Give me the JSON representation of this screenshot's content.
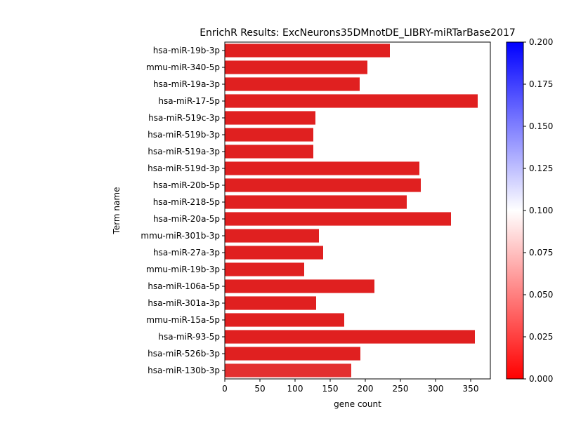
{
  "chart_data": {
    "type": "bar",
    "orientation": "horizontal",
    "title": "EnrichR Results: ExcNeurons35DMnotDE_LIBRY-miRTarBase2017",
    "xlabel": "gene count",
    "ylabel": "Term name",
    "xlim": [
      0,
      378
    ],
    "xticks": [
      0,
      50,
      100,
      150,
      200,
      250,
      300,
      350
    ],
    "categories": [
      "hsa-miR-19b-3p",
      "mmu-miR-340-5p",
      "hsa-miR-19a-3p",
      "hsa-miR-17-5p",
      "hsa-miR-519c-3p",
      "hsa-miR-519b-3p",
      "hsa-miR-519a-3p",
      "hsa-miR-519d-3p",
      "hsa-miR-20b-5p",
      "hsa-miR-218-5p",
      "hsa-miR-20a-5p",
      "mmu-miR-301b-3p",
      "hsa-miR-27a-3p",
      "mmu-miR-19b-3p",
      "hsa-miR-106a-5p",
      "hsa-miR-301a-3p",
      "mmu-miR-15a-5p",
      "hsa-miR-93-5p",
      "hsa-miR-526b-3p",
      "hsa-miR-130b-3p"
    ],
    "values": [
      235,
      203,
      192,
      360,
      129,
      126,
      126,
      277,
      279,
      259,
      322,
      134,
      140,
      113,
      213,
      130,
      170,
      356,
      193,
      180
    ],
    "bar_colors": [
      "#e02020",
      "#e02020",
      "#e02020",
      "#e02020",
      "#e02020",
      "#e02020",
      "#e02020",
      "#e02020",
      "#e02020",
      "#e02020",
      "#e02020",
      "#e02020",
      "#e02020",
      "#e02020",
      "#e02020",
      "#e02020",
      "#e02020",
      "#e02020",
      "#e02020",
      "#e33030"
    ],
    "colorbar": {
      "min": 0.0,
      "max": 0.2,
      "ticks": [
        "0.000",
        "0.025",
        "0.050",
        "0.075",
        "0.100",
        "0.125",
        "0.150",
        "0.175",
        "0.200"
      ],
      "colors": [
        "#ff0000",
        "#ffffff",
        "#0000ff"
      ]
    },
    "grid": false,
    "legend": "none"
  }
}
